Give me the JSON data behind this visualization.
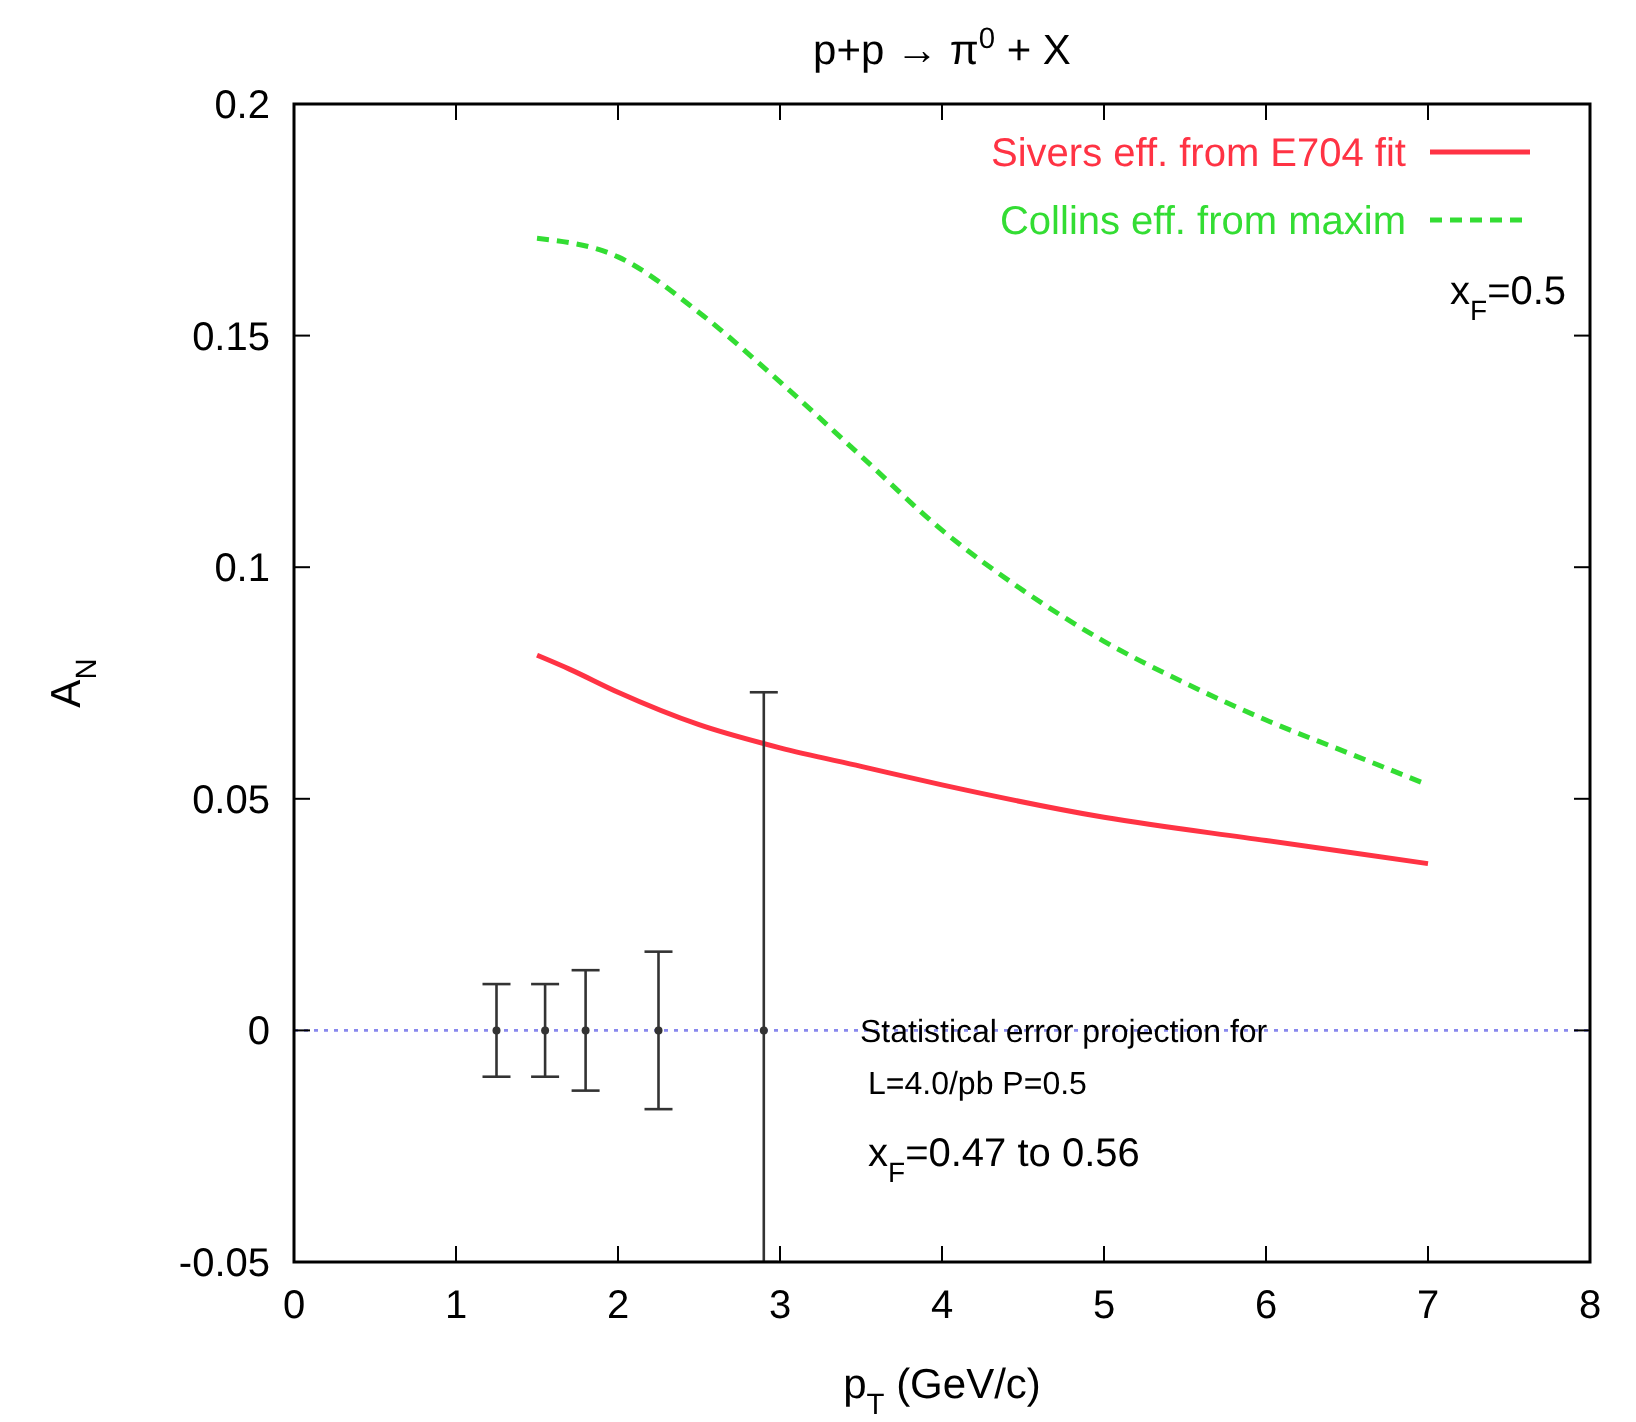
{
  "chart_data": {
    "type": "line",
    "title": "p+p → π$^{0}$ + X",
    "xlabel": "p$_{T}$ (GeV/c)",
    "ylabel": "A$_{N}$",
    "xlim": [
      0,
      8
    ],
    "xticks": [
      0,
      1,
      2,
      3,
      4,
      5,
      6,
      7,
      8
    ],
    "ylim": [
      -0.05,
      0.2
    ],
    "yticks": [
      -0.05,
      0,
      0.05,
      0.1,
      0.15,
      0.2
    ],
    "legend": "top right",
    "grid": false,
    "series": [
      {
        "name": "Sivers eff. from E704 fit",
        "color": "#ff3344",
        "line_style": "solid",
        "x": [
          1.5,
          1.7,
          2,
          2.5,
          3,
          3.5,
          4,
          5,
          6,
          7
        ],
        "values": [
          0.081,
          0.078,
          0.073,
          0.066,
          0.061,
          0.057,
          0.053,
          0.046,
          0.041,
          0.036
        ]
      },
      {
        "name": "Collins eff. from maxim",
        "color": "#33dd33",
        "line_style": "dashed",
        "x": [
          1.5,
          2,
          2.5,
          3,
          3.5,
          4,
          4.5,
          5,
          5.5,
          6,
          6.5,
          7
        ],
        "values": [
          0.171,
          0.167,
          0.155,
          0.14,
          0.124,
          0.108,
          0.095,
          0.084,
          0.075,
          0.067,
          0.06,
          0.053
        ]
      },
      {
        "type": "scatter",
        "color": "#333333",
        "marker": "circle",
        "x": [
          1.25,
          1.55,
          1.8,
          2.25,
          2.9
        ],
        "values": [
          0,
          0,
          0,
          0,
          0
        ],
        "errors": [
          0.01,
          0.01,
          0.013,
          0.017,
          [
            -0.05,
            0.073
          ]
        ]
      }
    ],
    "ref_lines": [
      {
        "axis": "y",
        "value": 0,
        "color": "#8888ee",
        "line_style": "dotted"
      }
    ],
    "annotations": [
      "x$_{F}$=0.5",
      "Statistical error projection for",
      "L=4.0/pb  P=0.5",
      "x$_{F}$=0.47 to 0.56"
    ]
  }
}
